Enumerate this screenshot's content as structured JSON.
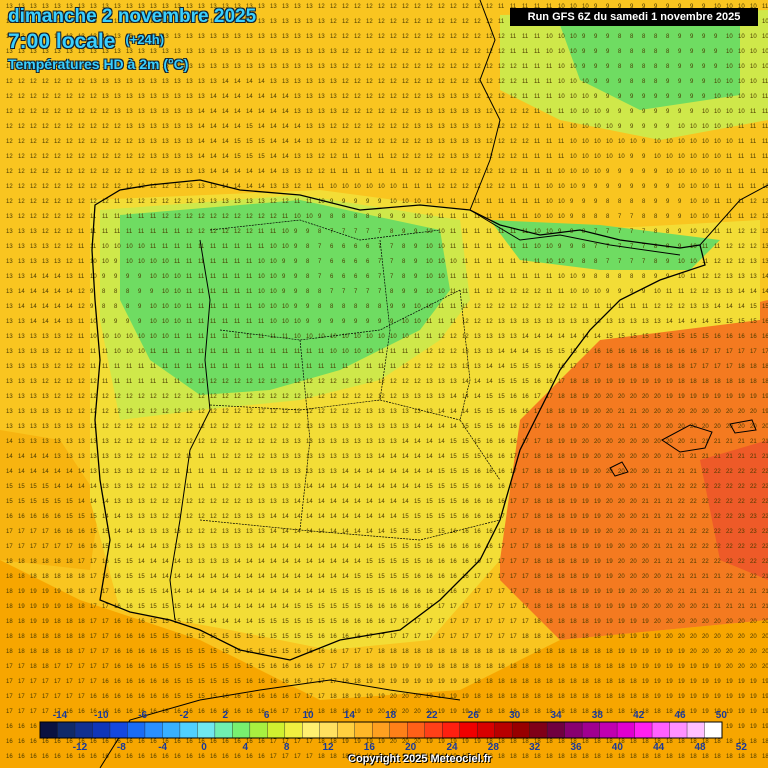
{
  "title": {
    "date": "dimanche 2 novembre 2025",
    "time": "7:00 locale",
    "lead": "(+24h)",
    "product": "Températures HD à 2m (°C)"
  },
  "run_info": "Run GFS 6Z du samedi 1 novembre 2025",
  "copyright": "Copyright 2025 Meteociel.fr",
  "legend": {
    "top_labels": [
      "-14",
      "-10",
      "-6",
      "-2",
      "2",
      "6",
      "10",
      "14",
      "18",
      "22",
      "26",
      "30",
      "34",
      "38",
      "42",
      "46",
      "50"
    ],
    "bottom_labels": [
      "-12",
      "-8",
      "-4",
      "0",
      "4",
      "8",
      "12",
      "16",
      "20",
      "24",
      "28",
      "32",
      "36",
      "40",
      "44",
      "48",
      "52"
    ],
    "colors": [
      "#0a1240",
      "#102a6a",
      "#12308f",
      "#1036b8",
      "#1448e0",
      "#1a6cf5",
      "#2a90ff",
      "#38b0ff",
      "#50d0ff",
      "#70e8f0",
      "#70f0b0",
      "#78f070",
      "#a8f040",
      "#d0f030",
      "#f0f040",
      "#fff070",
      "#ffe060",
      "#ffd040",
      "#ffb828",
      "#ffa020",
      "#ff8018",
      "#ff6018",
      "#ff4018",
      "#ff2010",
      "#f00000",
      "#d80000",
      "#b80000",
      "#980000",
      "#800018",
      "#700040",
      "#880070",
      "#a00090",
      "#c000b0",
      "#e000d0",
      "#ff20f0",
      "#ff60ff",
      "#ff90ff",
      "#ffc0ff",
      "#ffffff"
    ]
  },
  "iberia_palette": {
    "sea_warm": "#f7a600",
    "sea_mild": "#f9c520",
    "land_mild": "#f3dd36",
    "land_cool": "#cfe84a",
    "land_cold": "#6fdc62",
    "med_hot": "#f47a20"
  }
}
